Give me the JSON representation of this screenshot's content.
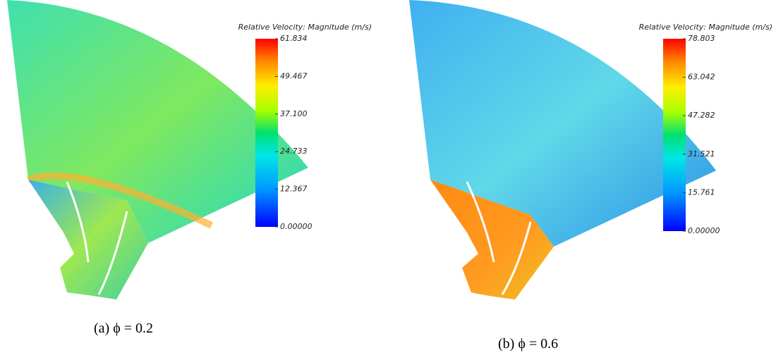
{
  "panels": [
    {
      "caption": "(a) ϕ = 0.2",
      "colorbar": {
        "title": "Relative Velocity: Magnitude (m/s)",
        "range": [
          0,
          61.834
        ],
        "ticks": [
          {
            "value": 61.834,
            "label": "61.834"
          },
          {
            "value": 49.467,
            "label": "49.467"
          },
          {
            "value": 37.1,
            "label": "37.100"
          },
          {
            "value": 24.733,
            "label": "24.733"
          },
          {
            "value": 12.367,
            "label": "12.367"
          },
          {
            "value": 0,
            "label": "0.00000"
          }
        ]
      }
    },
    {
      "caption": "(b) ϕ = 0.6",
      "colorbar": {
        "title": "Relative Velocity: Magnitude (m/s)",
        "range": [
          0,
          78.803
        ],
        "ticks": [
          {
            "value": 78.803,
            "label": "78.803"
          },
          {
            "value": 63.042,
            "label": "63.042"
          },
          {
            "value": 47.282,
            "label": "47.282"
          },
          {
            "value": 31.521,
            "label": "31.521"
          },
          {
            "value": 15.761,
            "label": "15.761"
          },
          {
            "value": 0,
            "label": "0.00000"
          }
        ]
      }
    }
  ]
}
